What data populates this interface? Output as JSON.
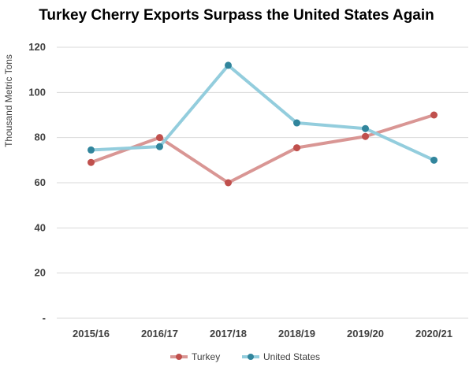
{
  "chart_data": {
    "type": "line",
    "title": "Turkey Cherry Exports Surpass the United States Again",
    "ylabel": "Thousand Metric Tons",
    "xlabel": "",
    "categories": [
      "2015/16",
      "2016/17",
      "2017/18",
      "2018/19",
      "2019/20",
      "2020/21"
    ],
    "ylim": [
      0,
      120
    ],
    "yticks": [
      "-",
      "20",
      "40",
      "60",
      "80",
      "100",
      "120"
    ],
    "grid": true,
    "legend": "bottom",
    "series": [
      {
        "name": "Turkey",
        "values": [
          69,
          80,
          60,
          75.5,
          80.5,
          90
        ],
        "color": "#d99694",
        "marker_color": "#c0504d"
      },
      {
        "name": "United States",
        "values": [
          74.5,
          76,
          112,
          86.5,
          84,
          70
        ],
        "color": "#93cddd",
        "marker_color": "#31859c"
      }
    ]
  }
}
